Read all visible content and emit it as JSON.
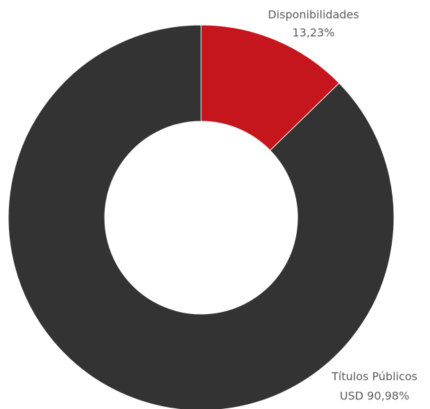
{
  "chart_data": {
    "type": "donut",
    "categories": [
      "Disponibilidades",
      "Títulos Públicos"
    ],
    "values": [
      13.23,
      90.98
    ],
    "value_labels": [
      "13,23%",
      "USD 90,98%"
    ],
    "colors": [
      "#c4161c",
      "#333333"
    ]
  }
}
